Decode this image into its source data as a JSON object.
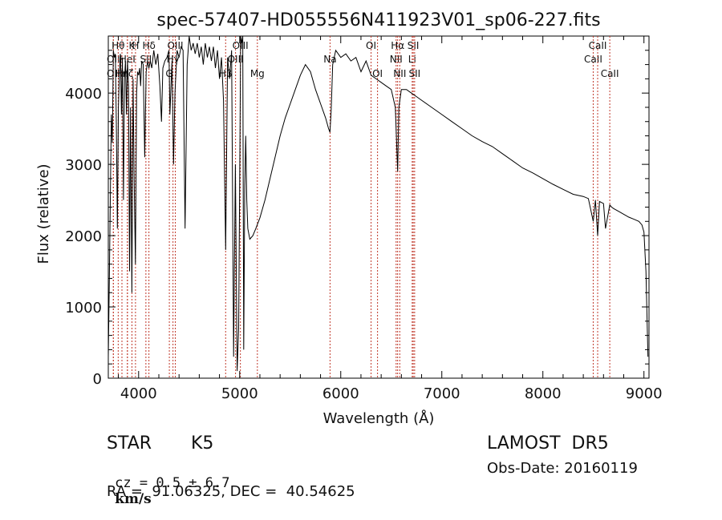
{
  "chart_data": {
    "type": "line",
    "title": "spec-57407-HD055556N411923V01_sp06-227.fits",
    "xlabel": "Wavelength (Å)",
    "ylabel": "Flux (relative)",
    "xlim": [
      3700,
      9050
    ],
    "ylim": [
      0,
      4800
    ],
    "xticks": [
      4000,
      5000,
      6000,
      7000,
      8000,
      9000
    ],
    "xtick_labels": [
      "4000",
      "5000",
      "6000",
      "7000",
      "8000",
      "9000"
    ],
    "yticks": [
      0,
      1000,
      2000,
      3000,
      4000
    ],
    "ytick_labels": [
      "0",
      "1000",
      "2000",
      "3000",
      "4000"
    ],
    "grid": false,
    "line_color": "#000000",
    "marker_color": "#c0392b",
    "series": [
      {
        "x": [
          3700,
          3710,
          3720,
          3730,
          3740,
          3750,
          3760,
          3770,
          3780,
          3790,
          3800,
          3810,
          3820,
          3830,
          3840,
          3850,
          3860,
          3870,
          3880,
          3890,
          3900,
          3910,
          3920,
          3933,
          3945,
          3955,
          3968,
          3980,
          3990,
          4000,
          4010,
          4020,
          4030,
          4045,
          4060,
          4075,
          4090,
          4102,
          4115,
          4130,
          4150,
          4170,
          4190,
          4210,
          4226,
          4240,
          4260,
          4280,
          4300,
          4310,
          4330,
          4345,
          4360,
          4380,
          4400,
          4420,
          4440,
          4460,
          4480,
          4500,
          4520,
          4540,
          4560,
          4580,
          4600,
          4620,
          4640,
          4660,
          4680,
          4700,
          4720,
          4740,
          4760,
          4780,
          4800,
          4820,
          4840,
          4861,
          4880,
          4900,
          4920,
          4940,
          4957,
          4975,
          4990,
          5000,
          5010,
          5020,
          5030,
          5040,
          5050,
          5060,
          5070,
          5080,
          5100,
          5130,
          5160,
          5200,
          5250,
          5300,
          5350,
          5400,
          5450,
          5500,
          5550,
          5600,
          5650,
          5700,
          5750,
          5800,
          5850,
          5880,
          5893,
          5905,
          5920,
          5950,
          6000,
          6050,
          6100,
          6150,
          6200,
          6250,
          6300,
          6350,
          6400,
          6450,
          6500,
          6540,
          6563,
          6575,
          6600,
          6650,
          6700,
          6750,
          6800,
          6900,
          7000,
          7100,
          7200,
          7300,
          7400,
          7500,
          7600,
          7700,
          7800,
          7900,
          8000,
          8100,
          8200,
          8300,
          8400,
          8450,
          8498,
          8520,
          8542,
          8560,
          8600,
          8620,
          8662,
          8680,
          8700,
          8750,
          8800,
          8850,
          8900,
          8950,
          8980,
          9000,
          9020,
          9040
        ],
        "y": [
          300,
          1400,
          2500,
          3700,
          3300,
          4600,
          4500,
          4550,
          3500,
          2100,
          3800,
          4300,
          4550,
          3700,
          4500,
          2500,
          4200,
          4450,
          3700,
          4450,
          4100,
          1500,
          3800,
          1200,
          4200,
          2900,
          1600,
          4000,
          4300,
          4250,
          4350,
          4100,
          4450,
          4400,
          3100,
          4300,
          4450,
          4350,
          4450,
          4350,
          4600,
          4400,
          4550,
          4100,
          3600,
          4350,
          4450,
          4500,
          4600,
          3700,
          4450,
          3000,
          4000,
          4600,
          4500,
          4650,
          4600,
          2100,
          4400,
          4900,
          4600,
          4700,
          4550,
          4700,
          4500,
          4650,
          4400,
          4700,
          4500,
          4650,
          4450,
          4650,
          4350,
          4600,
          4200,
          4500,
          3900,
          1800,
          4500,
          4200,
          4600,
          300,
          3000,
          100,
          700,
          2800,
          4800,
          4700,
          4850,
          400,
          2700,
          3400,
          2500,
          2100,
          1950,
          2000,
          2100,
          2250,
          2500,
          2800,
          3100,
          3400,
          3650,
          3850,
          4050,
          4250,
          4400,
          4300,
          4050,
          3850,
          3650,
          3500,
          3450,
          3750,
          4400,
          4600,
          4500,
          4550,
          4450,
          4500,
          4300,
          4450,
          4250,
          4200,
          4150,
          4100,
          4050,
          3800,
          2900,
          3800,
          4050,
          4050,
          4000,
          3950,
          3900,
          3800,
          3700,
          3600,
          3500,
          3400,
          3320,
          3250,
          3150,
          3050,
          2950,
          2880,
          2800,
          2720,
          2650,
          2580,
          2550,
          2520,
          2200,
          2500,
          2000,
          2480,
          2450,
          2100,
          2430,
          2400,
          2380,
          2340,
          2300,
          2260,
          2230,
          2200,
          2150,
          2050,
          1500,
          300
        ]
      }
    ],
    "annotations": [
      {
        "x": 3750,
        "label": "OII",
        "row": 1
      },
      {
        "x": 3750,
        "label": "OII",
        "row": 2
      },
      {
        "x": 3798,
        "label": "Hθ",
        "row": 0
      },
      {
        "x": 3835,
        "label": "Hη",
        "row": 2
      },
      {
        "x": 3889,
        "label": "HeI",
        "row": 1
      },
      {
        "x": 3889,
        "label": "Hζ",
        "row": 2
      },
      {
        "x": 3934,
        "label": "K",
        "row": 0
      },
      {
        "x": 3969,
        "label": "H",
        "row": 0
      },
      {
        "x": 4072,
        "label": "SII",
        "row": 1
      },
      {
        "x": 4102,
        "label": "Hδ",
        "row": 0
      },
      {
        "x": 4304,
        "label": "G",
        "row": 2
      },
      {
        "x": 4340,
        "label": "Hγ",
        "row": 1
      },
      {
        "x": 4363,
        "label": "OIII",
        "row": 0
      },
      {
        "x": 4861,
        "label": "Hβ",
        "row": 2
      },
      {
        "x": 4959,
        "label": "OIII",
        "row": 1
      },
      {
        "x": 5007,
        "label": "OIII",
        "row": 0
      },
      {
        "x": 5175,
        "label": "Mg",
        "row": 2
      },
      {
        "x": 5894,
        "label": "Na",
        "row": 1
      },
      {
        "x": 6300,
        "label": "OI",
        "row": 0
      },
      {
        "x": 6364,
        "label": "OI",
        "row": 2
      },
      {
        "x": 6548,
        "label": "NII",
        "row": 1
      },
      {
        "x": 6563,
        "label": "Hα",
        "row": 0
      },
      {
        "x": 6584,
        "label": "NII",
        "row": 2
      },
      {
        "x": 6707,
        "label": "Li",
        "row": 1
      },
      {
        "x": 6717,
        "label": "SII",
        "row": 0
      },
      {
        "x": 6731,
        "label": "SII",
        "row": 2
      },
      {
        "x": 8498,
        "label": "CaII",
        "row": 1
      },
      {
        "x": 8542,
        "label": "CaII",
        "row": 0
      },
      {
        "x": 8662,
        "label": "CaII",
        "row": 2
      }
    ]
  },
  "info": {
    "object_class": "STAR",
    "subclass": "K5",
    "survey": "LAMOST  DR5",
    "cz_text": "cz = 0.5 ± 6.7",
    "cz_unit": "km/s",
    "obs_date": "Obs-Date: 20160119",
    "coords": "RA =  91.06325, DEC =  40.54625"
  }
}
